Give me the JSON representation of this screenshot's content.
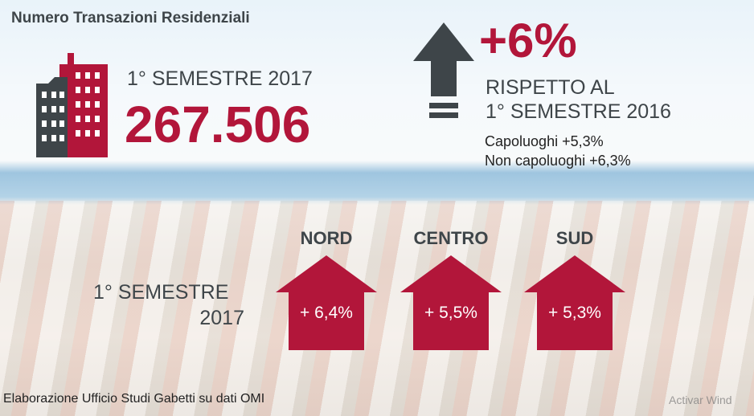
{
  "title": "Numero Transazioni Residenziali",
  "main": {
    "period": "1° SEMESTRE 2017",
    "value": "267.506"
  },
  "change": {
    "value": "+6%",
    "label_lines": [
      "RISPETTO AL",
      "1° SEMESTRE 2016"
    ],
    "details": [
      "Capoluoghi +5,3%",
      "Non capoluoghi +6,3%"
    ]
  },
  "regions": {
    "period_lines": [
      "1° SEMESTRE",
      "2017"
    ],
    "items": [
      {
        "name": "NORD",
        "value": "+ 6,4%"
      },
      {
        "name": "CENTRO",
        "value": "+ 5,5%"
      },
      {
        "name": "SUD",
        "value": "+ 5,3%"
      }
    ]
  },
  "footer": "Elaborazione Ufficio Studi Gabetti su dati OMI",
  "watermark": "Activar Wind"
}
